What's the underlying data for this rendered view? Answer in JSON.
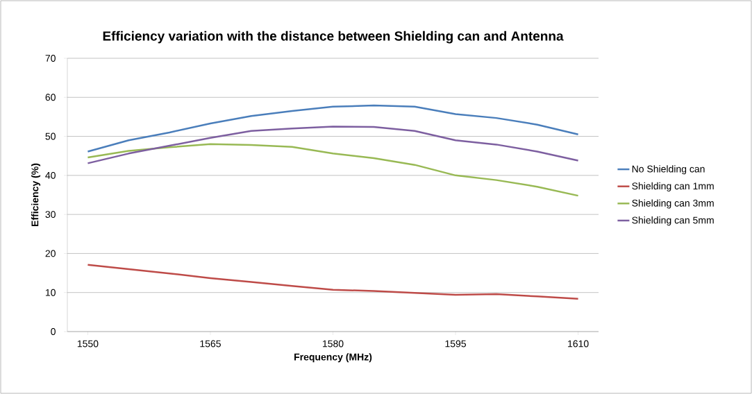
{
  "chart_data": {
    "type": "line",
    "title": "Efficiency variation with the distance between Shielding can and Antenna",
    "xlabel": "Frequency  (MHz)",
    "ylabel": "Efficiency (%)",
    "x": [
      1550,
      1555,
      1560,
      1565,
      1570,
      1575,
      1580,
      1585,
      1590,
      1595,
      1600,
      1605,
      1610
    ],
    "xlim": [
      1547.5,
      1612.5
    ],
    "xticks": [
      1550,
      1565,
      1580,
      1595,
      1610
    ],
    "ylim": [
      0,
      70
    ],
    "yticks": [
      0,
      10,
      20,
      30,
      40,
      50,
      60,
      70
    ],
    "grid": "y",
    "legend": "right",
    "marker": "none",
    "line_style": "solid",
    "series": [
      {
        "name": "No Shielding can",
        "color": "#4a7ebb",
        "values": [
          46.1,
          49,
          51,
          53.3,
          55.2,
          56.5,
          57.6,
          57.9,
          57.6,
          55.7,
          54.7,
          53,
          50.5
        ]
      },
      {
        "name": "Shielding can 1mm",
        "color": "#be4b48",
        "values": [
          17.1,
          16,
          14.9,
          13.7,
          12.7,
          11.7,
          10.7,
          10.4,
          9.9,
          9.4,
          9.6,
          9.0,
          8.4
        ]
      },
      {
        "name": "Shielding can 3mm",
        "color": "#98b954",
        "values": [
          44.6,
          46.3,
          47.2,
          48,
          47.8,
          47.3,
          45.6,
          44.4,
          42.7,
          40,
          38.8,
          37.1,
          34.8
        ]
      },
      {
        "name": "Shielding can 5mm",
        "color": "#7d5fa0",
        "values": [
          43.1,
          45.6,
          47.6,
          49.6,
          51.4,
          52,
          52.5,
          52.4,
          51.4,
          49,
          47.9,
          46.1,
          43.8
        ]
      }
    ]
  }
}
